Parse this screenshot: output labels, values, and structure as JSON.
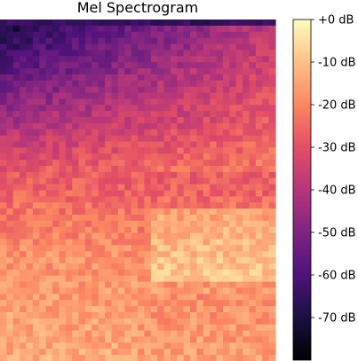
{
  "chart_data": {
    "type": "heatmap",
    "title": "Mel Spectrogram",
    "xlabel": "",
    "ylabel": "",
    "colormap": "magma",
    "value_unit": "dB",
    "color_range": [
      -80,
      0
    ],
    "grid": false,
    "colorbar": {
      "placement": "right",
      "ticks": [
        0,
        -10,
        -20,
        -30,
        -40,
        -50,
        -60,
        -70
      ],
      "tick_labels": [
        "+0 dB",
        "-10 dB",
        "-20 dB",
        "-30 dB",
        "-40 dB",
        "-50 dB",
        "-60 dB",
        "-70 dB"
      ]
    },
    "grid_size": {
      "columns": 42,
      "rows": 56
    },
    "time_steps": 42,
    "mel_bins": 56,
    "rows_low_to_high_bin_db_profile": {
      "description_note": "",
      "top_region_db": -72,
      "upper_region_db": -45,
      "middle_region_db": -28,
      "lower_region_db": -18,
      "bottom_region_db": -14
    }
  }
}
